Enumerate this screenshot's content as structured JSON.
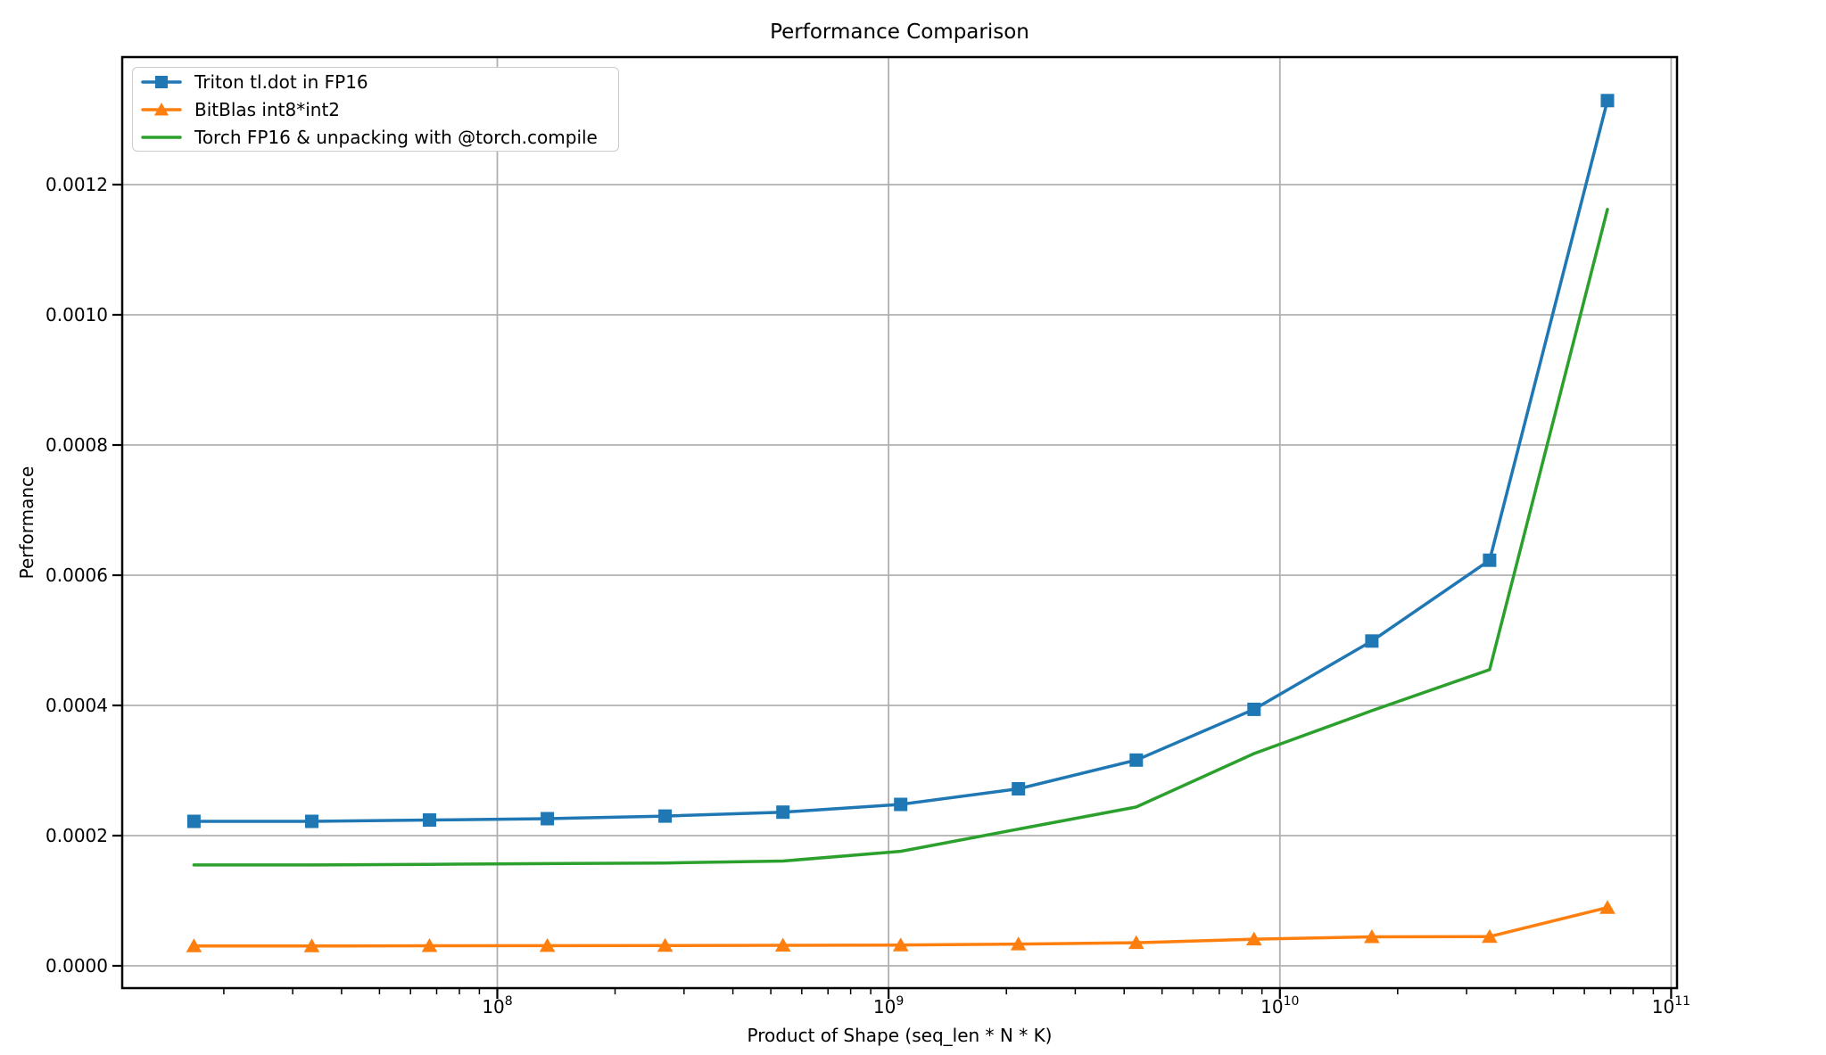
{
  "chart_data": {
    "type": "line",
    "title": "Performance Comparison",
    "xlabel": "Product of Shape (seq_len * N * K)",
    "ylabel": "Performance",
    "x_scale": "log",
    "grid": true,
    "legend_position": "upper left",
    "xlim": [
      11000000,
      103500000000
    ],
    "ylim": [
      -3.42e-05,
      0.0013959
    ],
    "x_major_tick_exponents": [
      8,
      9,
      10,
      11
    ],
    "y_ticks": [
      {
        "value": 0.0,
        "label": "0.0000"
      },
      {
        "value": 0.0002,
        "label": "0.0002"
      },
      {
        "value": 0.0004,
        "label": "0.0004"
      },
      {
        "value": 0.0006,
        "label": "0.0006"
      },
      {
        "value": 0.0008,
        "label": "0.0008"
      },
      {
        "value": 0.001,
        "label": "0.0010"
      },
      {
        "value": 0.0012,
        "label": "0.0012"
      }
    ],
    "x": [
      16777216,
      33554432,
      67108864,
      134217728,
      268435456,
      536870912,
      1073741824,
      2147483648,
      4294967296,
      8589934592,
      17179869184,
      34359738368,
      68719476736
    ],
    "series": [
      {
        "name": "Triton tl.dot in FP16",
        "color": "#1f77b4",
        "marker": "square",
        "values": [
          0.000222,
          0.000222,
          0.000224,
          0.000226,
          0.00023,
          0.000236,
          0.000248,
          0.000272,
          0.000316,
          0.000394,
          0.000499,
          0.000623,
          0.001329
        ]
      },
      {
        "name": "BitBlas int8*int2",
        "color": "#ff7f0e",
        "marker": "triangle",
        "values": [
          3.05e-05,
          3.05e-05,
          3.08e-05,
          3.1e-05,
          3.12e-05,
          3.15e-05,
          3.2e-05,
          3.35e-05,
          3.55e-05,
          4.1e-05,
          4.45e-05,
          4.5e-05,
          8.95e-05
        ]
      },
      {
        "name": "Torch FP16 & unpacking with @torch.compile",
        "color": "#2ca02c",
        "marker": "none",
        "values": [
          0.000155,
          0.000155,
          0.000156,
          0.000157,
          0.000158,
          0.000161,
          0.000176,
          0.00021,
          0.000244,
          0.000326,
          0.000392,
          0.000455,
          0.001162
        ]
      }
    ],
    "style": {
      "grid_color": "#b0b0b0",
      "spine_color": "#000000",
      "background": "#ffffff",
      "legend_border_color": "#cccccc"
    }
  }
}
